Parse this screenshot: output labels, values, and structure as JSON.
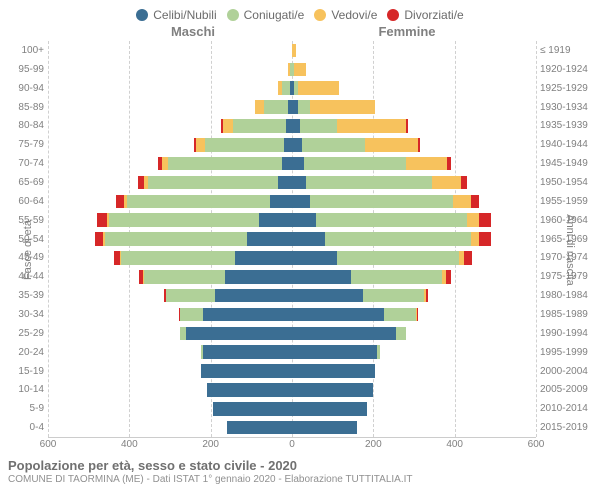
{
  "legend": [
    {
      "label": "Celibi/Nubili",
      "color": "#3b6e93"
    },
    {
      "label": "Coniugati/e",
      "color": "#b0d199"
    },
    {
      "label": "Vedovi/e",
      "color": "#f7c25d"
    },
    {
      "label": "Divorziati/e",
      "color": "#d62728"
    }
  ],
  "gender_labels": {
    "male": "Maschi",
    "female": "Femmine"
  },
  "axis_titles": {
    "left": "Fasce di età",
    "right": "Anni di nascita"
  },
  "footer": {
    "title": "Popolazione per età, sesso e stato civile - 2020",
    "subtitle": "COMUNE DI TAORMINA (ME) - Dati ISTAT 1° gennaio 2020 - Elaborazione TUTTITALIA.IT"
  },
  "x_axis": {
    "min": 0,
    "max": 600,
    "ticks": [
      600,
      400,
      200,
      0,
      200,
      400,
      600
    ]
  },
  "chart": {
    "type": "population-pyramid",
    "max_value": 600,
    "grid_color": "#d0d0d0",
    "background_color": "#ffffff",
    "category_colors": [
      "#3b6e93",
      "#b0d199",
      "#f7c25d",
      "#d62728"
    ],
    "rows": [
      {
        "age": "100+",
        "birth": "≤ 1919",
        "male": [
          0,
          0,
          0,
          0
        ],
        "female": [
          0,
          0,
          10,
          0
        ]
      },
      {
        "age": "95-99",
        "birth": "1920-1924",
        "male": [
          0,
          5,
          5,
          0
        ],
        "female": [
          0,
          5,
          30,
          0
        ]
      },
      {
        "age": "90-94",
        "birth": "1925-1929",
        "male": [
          5,
          20,
          10,
          0
        ],
        "female": [
          5,
          10,
          100,
          0
        ]
      },
      {
        "age": "85-89",
        "birth": "1930-1934",
        "male": [
          10,
          60,
          20,
          0
        ],
        "female": [
          15,
          30,
          160,
          0
        ]
      },
      {
        "age": "80-84",
        "birth": "1935-1939",
        "male": [
          15,
          130,
          25,
          5
        ],
        "female": [
          20,
          90,
          170,
          5
        ]
      },
      {
        "age": "75-79",
        "birth": "1940-1944",
        "male": [
          20,
          195,
          20,
          5
        ],
        "female": [
          25,
          155,
          130,
          5
        ]
      },
      {
        "age": "70-74",
        "birth": "1945-1949",
        "male": [
          25,
          280,
          15,
          10
        ],
        "female": [
          30,
          250,
          100,
          10
        ]
      },
      {
        "age": "65-69",
        "birth": "1950-1954",
        "male": [
          35,
          320,
          10,
          15
        ],
        "female": [
          35,
          310,
          70,
          15
        ]
      },
      {
        "age": "60-64",
        "birth": "1955-1959",
        "male": [
          55,
          350,
          8,
          20
        ],
        "female": [
          45,
          350,
          45,
          20
        ]
      },
      {
        "age": "55-59",
        "birth": "1960-1964",
        "male": [
          80,
          370,
          5,
          25
        ],
        "female": [
          60,
          370,
          30,
          30
        ]
      },
      {
        "age": "50-54",
        "birth": "1965-1969",
        "male": [
          110,
          350,
          5,
          20
        ],
        "female": [
          80,
          360,
          20,
          30
        ]
      },
      {
        "age": "45-49",
        "birth": "1970-1974",
        "male": [
          140,
          280,
          3,
          15
        ],
        "female": [
          110,
          300,
          12,
          20
        ]
      },
      {
        "age": "40-44",
        "birth": "1975-1979",
        "male": [
          165,
          200,
          2,
          10
        ],
        "female": [
          145,
          225,
          8,
          12
        ]
      },
      {
        "age": "35-39",
        "birth": "1980-1984",
        "male": [
          190,
          120,
          0,
          5
        ],
        "female": [
          175,
          150,
          4,
          6
        ]
      },
      {
        "age": "30-34",
        "birth": "1985-1989",
        "male": [
          220,
          55,
          0,
          2
        ],
        "female": [
          225,
          80,
          2,
          3
        ]
      },
      {
        "age": "25-29",
        "birth": "1990-1994",
        "male": [
          260,
          15,
          0,
          0
        ],
        "female": [
          255,
          25,
          0,
          0
        ]
      },
      {
        "age": "20-24",
        "birth": "1995-1999",
        "male": [
          220,
          3,
          0,
          0
        ],
        "female": [
          210,
          6,
          0,
          0
        ]
      },
      {
        "age": "15-19",
        "birth": "2000-2004",
        "male": [
          225,
          0,
          0,
          0
        ],
        "female": [
          205,
          0,
          0,
          0
        ]
      },
      {
        "age": "10-14",
        "birth": "2005-2009",
        "male": [
          210,
          0,
          0,
          0
        ],
        "female": [
          200,
          0,
          0,
          0
        ]
      },
      {
        "age": "5-9",
        "birth": "2010-2014",
        "male": [
          195,
          0,
          0,
          0
        ],
        "female": [
          185,
          0,
          0,
          0
        ]
      },
      {
        "age": "0-4",
        "birth": "2015-2019",
        "male": [
          160,
          0,
          0,
          0
        ],
        "female": [
          160,
          0,
          0,
          0
        ]
      }
    ]
  }
}
